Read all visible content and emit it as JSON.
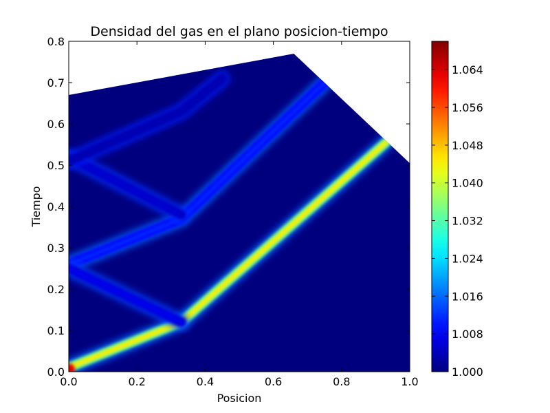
{
  "chart_data": {
    "type": "heatmap",
    "title": "Densidad del gas en el plano posicion-tiempo",
    "xlabel": "Posicion",
    "ylabel": "Tiempo",
    "xlim": [
      0.0,
      1.0
    ],
    "ylim": [
      0.0,
      0.8
    ],
    "xticks": [
      "0.0",
      "0.2",
      "0.4",
      "0.6",
      "0.8",
      "1.0"
    ],
    "yticks": [
      "0.0",
      "0.1",
      "0.2",
      "0.3",
      "0.4",
      "0.5",
      "0.6",
      "0.7",
      "0.8"
    ],
    "colormap": "jet",
    "colorbar": {
      "vmin": 1.0,
      "vmax": 1.07,
      "ticks": [
        "1.000",
        "1.008",
        "1.016",
        "1.024",
        "1.032",
        "1.040",
        "1.048",
        "1.056",
        "1.064"
      ],
      "tick_values": [
        1.0,
        1.008,
        1.016,
        1.024,
        1.032,
        1.04,
        1.048,
        1.056,
        1.064
      ]
    },
    "domain_boundary": [
      [
        0.0,
        0.0
      ],
      [
        0.0,
        0.67
      ],
      [
        0.66,
        0.77
      ],
      [
        1.0,
        0.505
      ],
      [
        1.0,
        0.0
      ]
    ],
    "background_value": 1.0,
    "features": [
      {
        "path": [
          [
            0.0,
            0.01
          ],
          [
            0.33,
            0.12
          ],
          [
            0.93,
            0.555
          ]
        ],
        "peak_value": 1.045
      },
      {
        "path": [
          [
            0.0,
            0.26
          ],
          [
            0.33,
            0.37
          ],
          [
            0.75,
            0.7
          ]
        ],
        "peak_value": 1.012
      },
      {
        "path": [
          [
            0.0,
            0.25
          ],
          [
            0.33,
            0.12
          ]
        ],
        "peak_value": 1.008
      },
      {
        "path": [
          [
            0.0,
            0.52
          ],
          [
            0.33,
            0.38
          ]
        ],
        "peak_value": 1.006
      },
      {
        "path": [
          [
            0.0,
            0.51
          ],
          [
            0.33,
            0.63
          ],
          [
            0.45,
            0.71
          ]
        ],
        "peak_value": 1.004
      }
    ]
  }
}
